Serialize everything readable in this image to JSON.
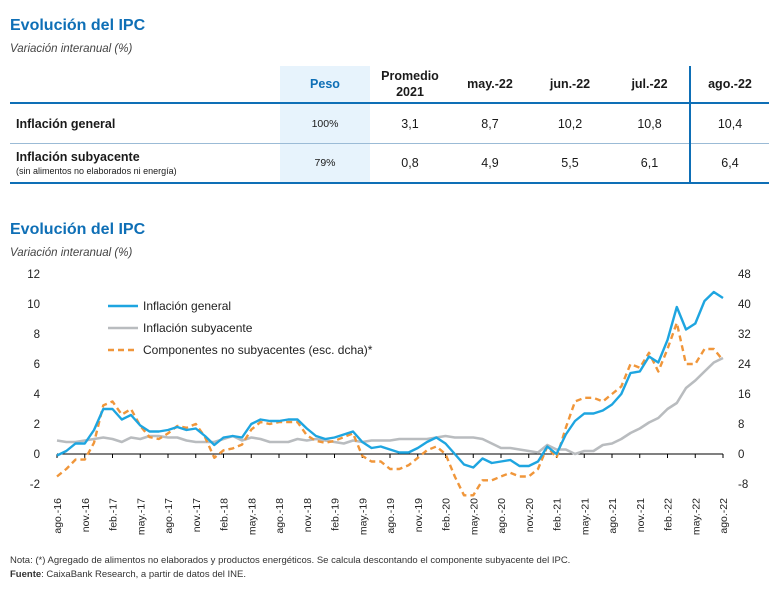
{
  "table_section": {
    "title": "Evolución del IPC",
    "subtitle": "Variación interanual (%)",
    "headers": [
      "",
      "Peso",
      "Promedio 2021",
      "may.-22",
      "jun.-22",
      "jul.-22",
      "ago.-22"
    ],
    "rows": [
      {
        "label": "Inflación general",
        "sublabel": "",
        "peso": "100%",
        "values": [
          "3,1",
          "8,7",
          "10,2",
          "10,8",
          "10,4"
        ]
      },
      {
        "label": "Inflación subyacente",
        "sublabel": "(sin alimentos no elaborados ni energía)",
        "peso": "79%",
        "values": [
          "0,8",
          "4,9",
          "5,5",
          "6,1",
          "6,4"
        ]
      }
    ]
  },
  "chart_section": {
    "title": "Evolución del IPC",
    "subtitle": "Variación interanual (%)"
  },
  "notes": {
    "nota": "Nota: (*) Agregado de alimentos no elaborados y productos energéticos. Se calcula descontando el componente subyacente del IPC.",
    "fuente_label": "Fuente",
    "fuente_text": ": CaixaBank Research, a partir de datos del INE."
  },
  "chart_data": {
    "type": "line",
    "title": "Evolución del IPC",
    "subtitle": "Variación interanual (%)",
    "x": [
      "2016-08",
      "2016-09",
      "2016-10",
      "2016-11",
      "2016-12",
      "2017-01",
      "2017-02",
      "2017-03",
      "2017-04",
      "2017-05",
      "2017-06",
      "2017-07",
      "2017-08",
      "2017-09",
      "2017-10",
      "2017-11",
      "2017-12",
      "2018-01",
      "2018-02",
      "2018-03",
      "2018-04",
      "2018-05",
      "2018-06",
      "2018-07",
      "2018-08",
      "2018-09",
      "2018-10",
      "2018-11",
      "2018-12",
      "2019-01",
      "2019-02",
      "2019-03",
      "2019-04",
      "2019-05",
      "2019-06",
      "2019-07",
      "2019-08",
      "2019-09",
      "2019-10",
      "2019-11",
      "2019-12",
      "2020-01",
      "2020-02",
      "2020-03",
      "2020-04",
      "2020-05",
      "2020-06",
      "2020-07",
      "2020-08",
      "2020-09",
      "2020-10",
      "2020-11",
      "2020-12",
      "2021-01",
      "2021-02",
      "2021-03",
      "2021-04",
      "2021-05",
      "2021-06",
      "2021-07",
      "2021-08",
      "2021-09",
      "2021-10",
      "2021-11",
      "2021-12",
      "2022-01",
      "2022-02",
      "2022-03",
      "2022-04",
      "2022-05",
      "2022-06",
      "2022-07",
      "2022-08"
    ],
    "x_tick_labels": [
      "ago.-16",
      "nov.-16",
      "feb.-17",
      "may.-17",
      "ago.-17",
      "nov.-17",
      "feb.-18",
      "may.-18",
      "ago.-18",
      "nov.-18",
      "feb.-19",
      "may.-19",
      "ago.-19",
      "nov.-19",
      "feb.-20",
      "may.-20",
      "ago.-20",
      "nov.-20",
      "feb.-21",
      "may.-21",
      "ago.-21",
      "nov.-21",
      "feb.-22",
      "may.-22",
      "ago.-22"
    ],
    "y_left": {
      "range": [
        -2,
        12
      ],
      "ticks": [
        -2,
        0,
        2,
        4,
        6,
        8,
        10,
        12
      ]
    },
    "y_right": {
      "range": [
        -8,
        48
      ],
      "ticks": [
        -8,
        0,
        8,
        16,
        24,
        32,
        40,
        48
      ]
    },
    "series": [
      {
        "name": "Inflación general",
        "axis": "left",
        "color": "#1ea5e0",
        "style": "solid",
        "values": [
          -0.1,
          0.2,
          0.7,
          0.7,
          1.6,
          3.0,
          3.0,
          2.3,
          2.6,
          1.9,
          1.5,
          1.5,
          1.6,
          1.8,
          1.6,
          1.7,
          1.2,
          0.6,
          1.1,
          1.2,
          1.1,
          2.0,
          2.3,
          2.2,
          2.2,
          2.3,
          2.3,
          1.7,
          1.2,
          1.0,
          1.1,
          1.3,
          1.5,
          0.8,
          0.4,
          0.5,
          0.3,
          0.1,
          0.1,
          0.4,
          0.8,
          1.1,
          0.7,
          0.0,
          -0.7,
          -0.9,
          -0.3,
          -0.6,
          -0.5,
          -0.4,
          -0.8,
          -0.8,
          -0.5,
          0.5,
          0.0,
          1.3,
          2.2,
          2.7,
          2.7,
          2.9,
          3.3,
          4.0,
          5.4,
          5.5,
          6.5,
          6.1,
          7.6,
          9.8,
          8.3,
          8.7,
          10.2,
          10.8,
          10.4
        ]
      },
      {
        "name": "Inflación subyacente",
        "axis": "left",
        "color": "#b9bcbf",
        "style": "solid",
        "values": [
          0.9,
          0.8,
          0.8,
          0.9,
          1.0,
          1.1,
          1.0,
          0.8,
          1.1,
          1.0,
          1.2,
          1.2,
          1.1,
          1.1,
          0.9,
          0.8,
          0.8,
          0.8,
          1.0,
          1.2,
          0.9,
          1.1,
          1.0,
          0.8,
          0.8,
          0.8,
          1.0,
          0.9,
          1.0,
          0.9,
          0.8,
          0.7,
          0.9,
          0.8,
          0.9,
          0.9,
          0.9,
          1.0,
          1.0,
          1.0,
          1.0,
          1.1,
          1.2,
          1.1,
          1.1,
          1.1,
          1.0,
          0.7,
          0.4,
          0.4,
          0.3,
          0.2,
          0.1,
          0.6,
          0.3,
          0.3,
          0.0,
          0.2,
          0.2,
          0.6,
          0.7,
          1.0,
          1.4,
          1.7,
          2.1,
          2.4,
          3.0,
          3.4,
          4.4,
          4.9,
          5.5,
          6.1,
          6.4
        ]
      },
      {
        "name": "Componentes no subyacentes (esc. dcha)*",
        "axis": "right",
        "color": "#f0963a",
        "style": "dashed",
        "values": [
          -6.0,
          -4.0,
          -1.5,
          -1.5,
          3.0,
          13.0,
          14.0,
          10.5,
          12.0,
          7.5,
          4.5,
          4.0,
          5.5,
          7.5,
          7.0,
          8.0,
          4.5,
          -1.0,
          1.0,
          1.5,
          2.5,
          6.5,
          8.5,
          8.0,
          8.5,
          8.5,
          8.5,
          5.0,
          3.5,
          3.0,
          3.5,
          4.5,
          5.5,
          -0.5,
          -2.0,
          -2.0,
          -4.0,
          -4.0,
          -3.0,
          -1.0,
          1.0,
          2.0,
          0.0,
          -6.0,
          -11.0,
          -11.0,
          -7.0,
          -7.0,
          -6.0,
          -5.0,
          -6.0,
          -6.0,
          -4.0,
          2.0,
          -1.0,
          7.0,
          14.0,
          15.0,
          15.0,
          14.0,
          16.0,
          18.0,
          24.0,
          23.0,
          27.0,
          22.0,
          28.0,
          35.0,
          24.0,
          24.0,
          28.0,
          28.0,
          25.0
        ]
      }
    ],
    "legend": "top-left",
    "grid": false
  }
}
